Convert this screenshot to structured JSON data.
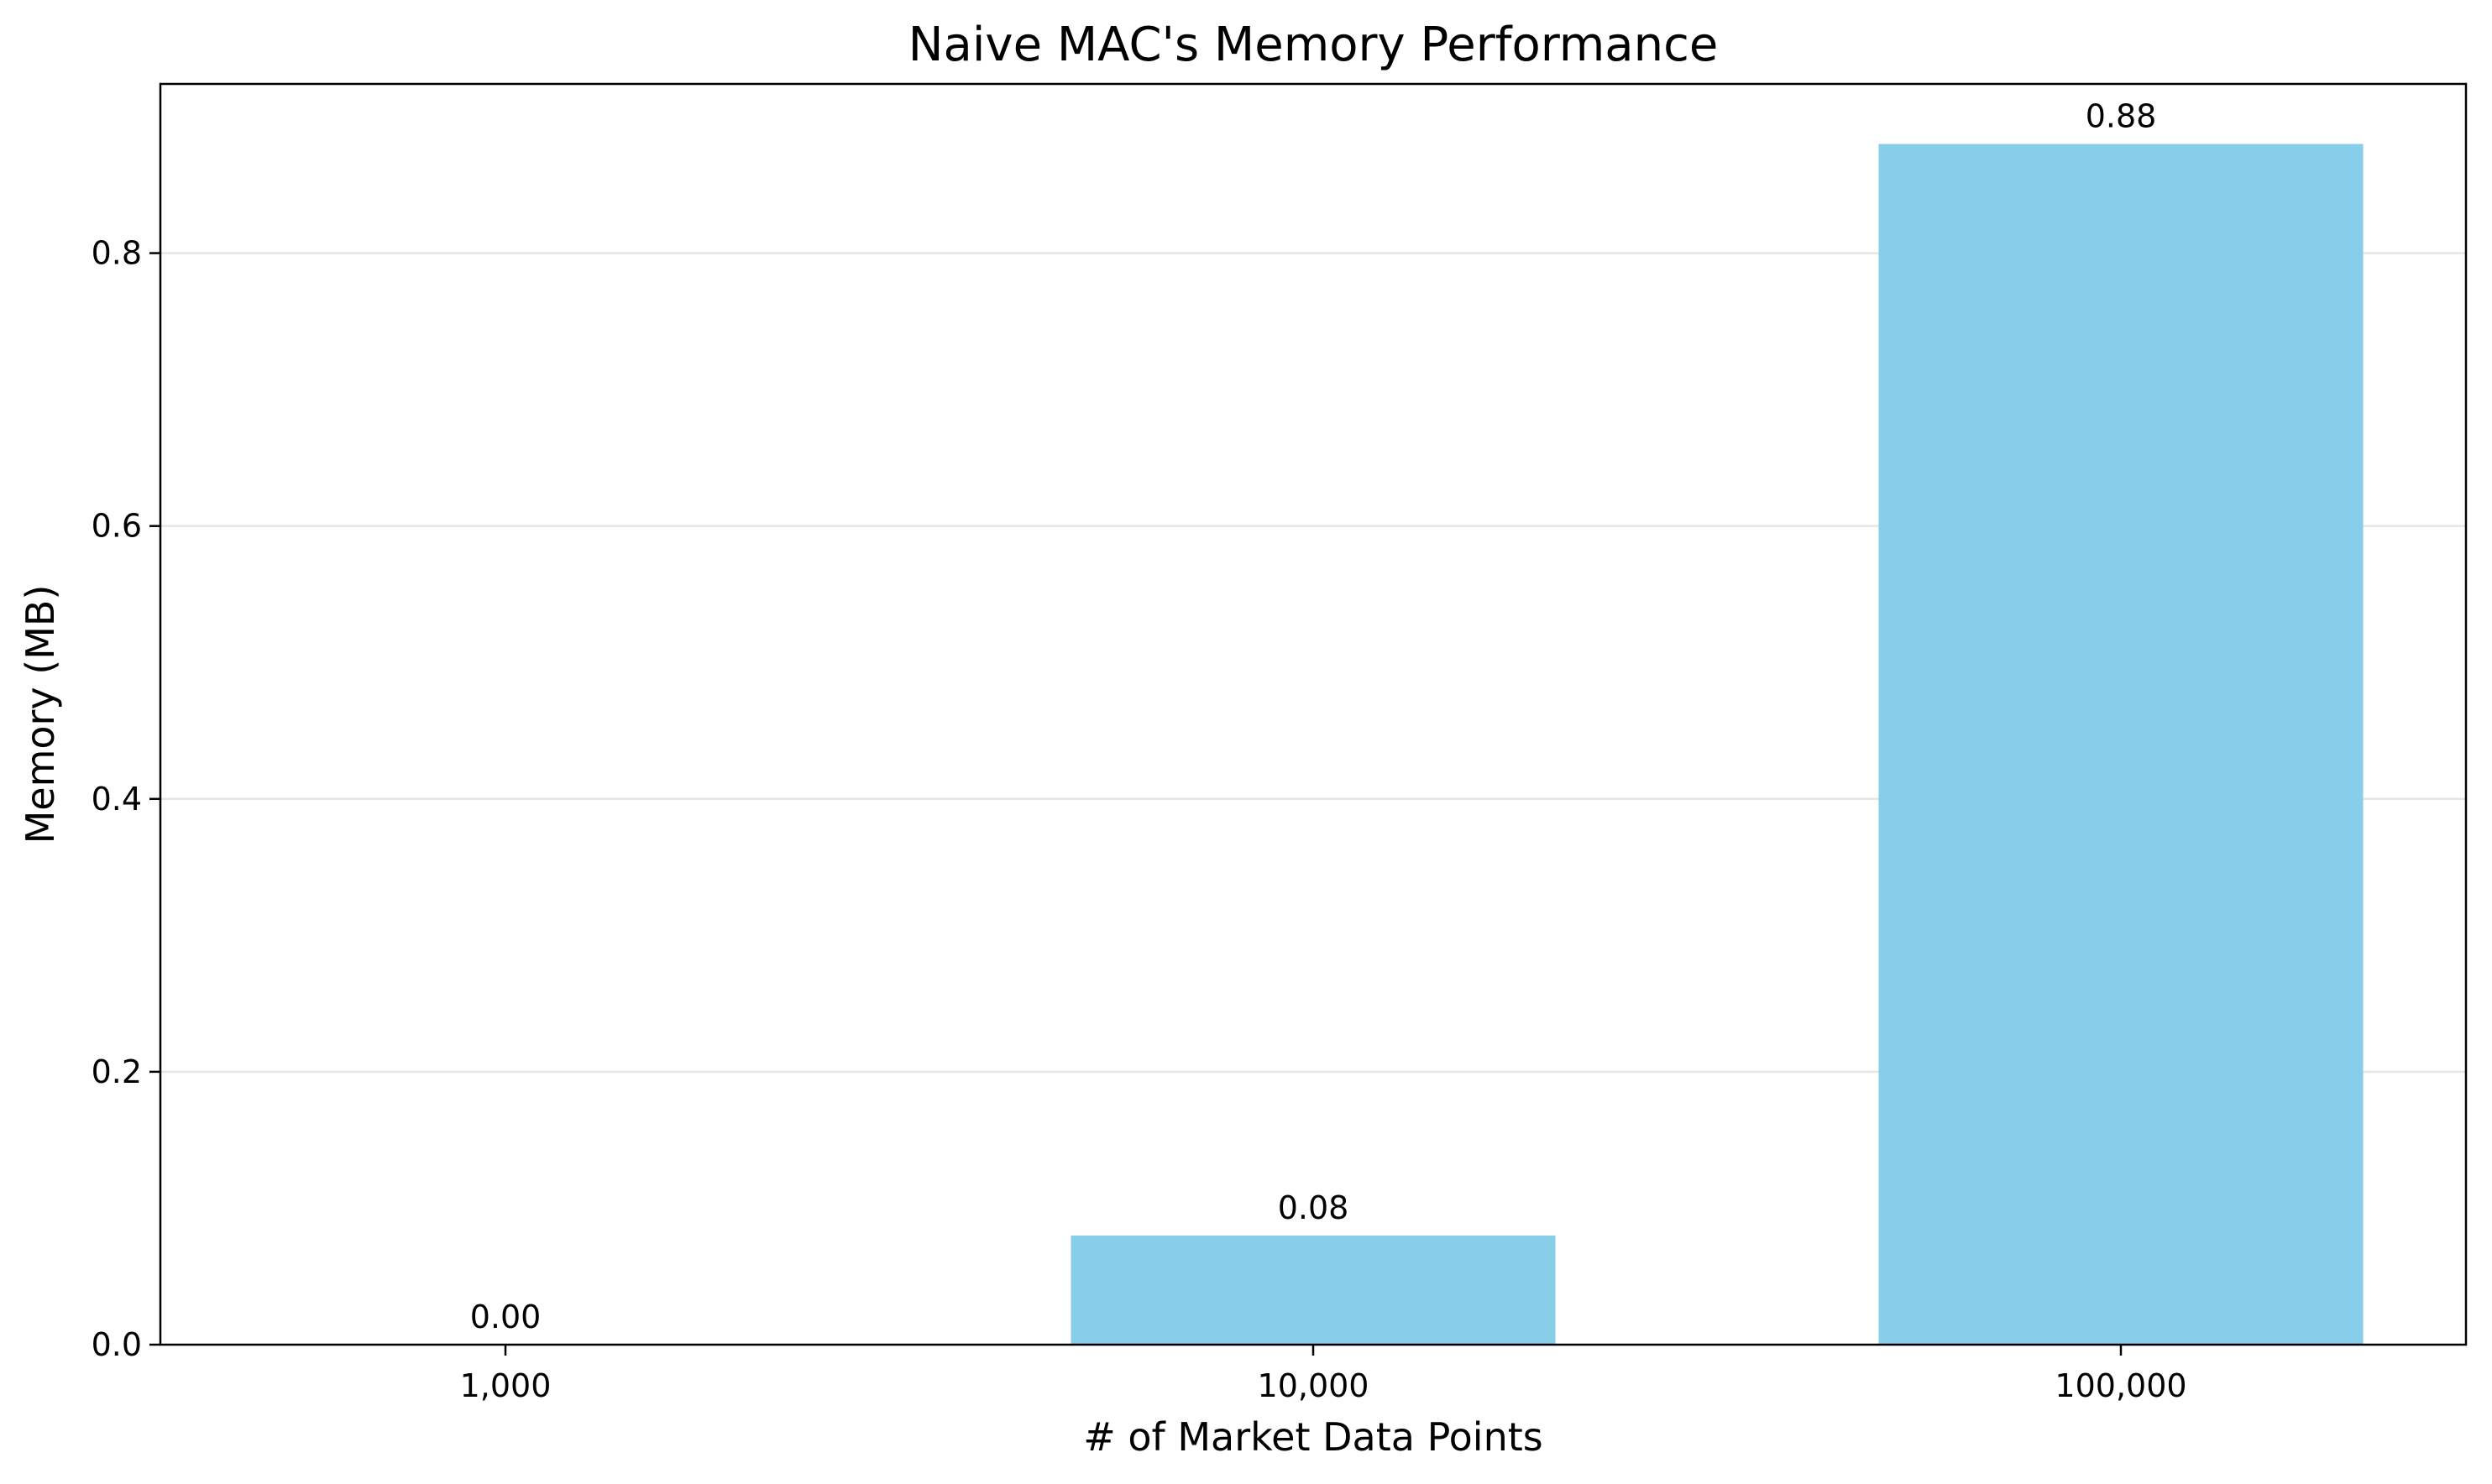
{
  "chart_data": {
    "type": "bar",
    "title": "Naive MAC's Memory Performance",
    "xlabel": "# of Market Data Points",
    "ylabel": "Memory (MB)",
    "categories": [
      "1,000",
      "10,000",
      "100,000"
    ],
    "values": [
      0.0,
      0.08,
      0.88
    ],
    "data_labels": [
      "0.00",
      "0.08",
      "0.88"
    ],
    "ylim": [
      0,
      0.924
    ],
    "yticks": [
      0.0,
      0.2,
      0.4,
      0.6,
      0.8
    ],
    "ytick_labels": [
      "0.0",
      "0.2",
      "0.4",
      "0.6",
      "0.8"
    ],
    "grid": "y-axis, light gray",
    "legend": "none",
    "bar_color": "#87CEEB",
    "grid_color": "#e6e6e6",
    "axis_color": "#000000"
  }
}
